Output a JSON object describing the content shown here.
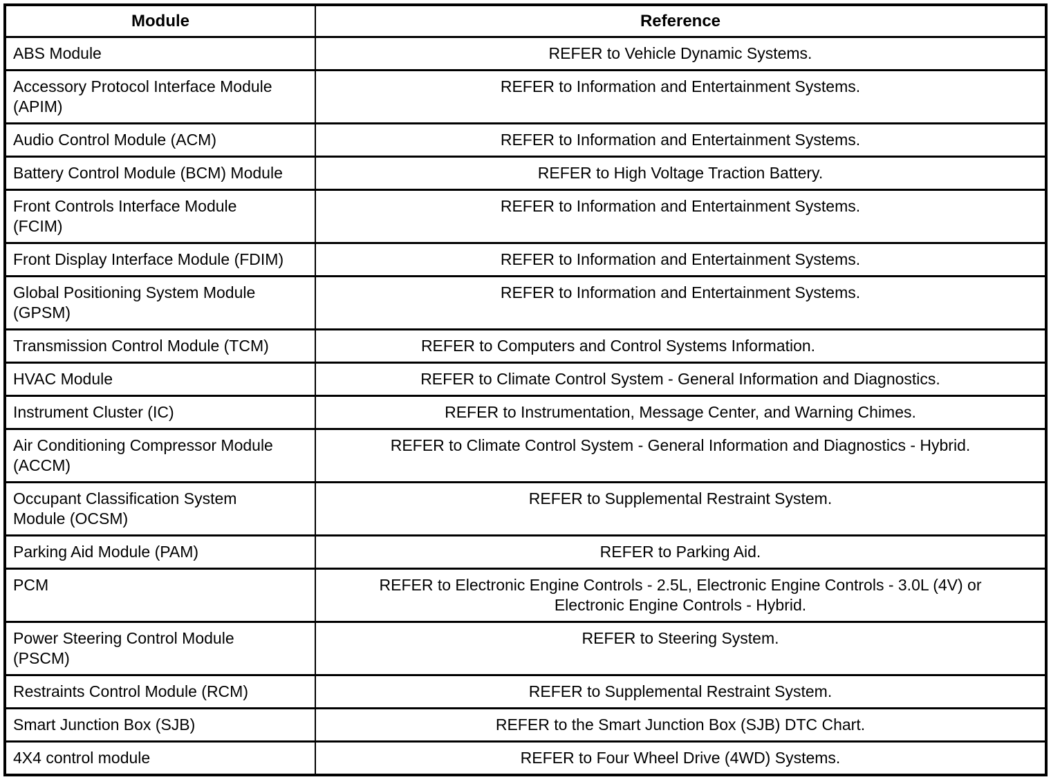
{
  "table": {
    "headers": {
      "module": "Module",
      "reference": "Reference"
    },
    "rows": [
      {
        "module": "ABS Module",
        "reference": "REFER to Vehicle Dynamic Systems."
      },
      {
        "module": "Accessory Protocol Interface Module\n(APIM)",
        "reference": "REFER to Information and Entertainment Systems."
      },
      {
        "module": "Audio Control Module (ACM)",
        "reference": "REFER to Information and Entertainment Systems."
      },
      {
        "module": "Battery Control Module (BCM) Module",
        "reference": "REFER to High Voltage Traction Battery."
      },
      {
        "module": "Front Controls Interface Module\n(FCIM)",
        "reference": "REFER to Information and Entertainment Systems."
      },
      {
        "module": "Front Display Interface Module (FDIM)",
        "reference": "REFER to Information and Entertainment Systems."
      },
      {
        "module": "Global Positioning System Module\n(GPSM)",
        "reference": "REFER to Information and Entertainment Systems."
      },
      {
        "module": "Transmission Control Module (TCM)",
        "reference": "REFER to Computers and Control Systems Information.",
        "ref_shift_left": true
      },
      {
        "module": "HVAC Module",
        "reference": "REFER to Climate Control System - General Information and Diagnostics."
      },
      {
        "module": "Instrument Cluster (IC)",
        "reference": "REFER to Instrumentation, Message Center, and Warning Chimes."
      },
      {
        "module": "Air Conditioning Compressor Module\n(ACCM)",
        "reference": "REFER to Climate Control System - General Information and Diagnostics - Hybrid."
      },
      {
        "module": "Occupant Classification System\nModule (OCSM)",
        "reference": "REFER to Supplemental Restraint System."
      },
      {
        "module": "Parking Aid Module (PAM)",
        "reference": "REFER to Parking Aid."
      },
      {
        "module": "PCM",
        "reference": "REFER to Electronic Engine Controls - 2.5L, Electronic Engine Controls - 3.0L (4V) or\nElectronic Engine Controls - Hybrid."
      },
      {
        "module": "Power Steering Control Module\n(PSCM)",
        "reference": "REFER to Steering System."
      },
      {
        "module": "Restraints Control Module (RCM)",
        "reference": "REFER to Supplemental Restraint System."
      },
      {
        "module": "Smart Junction Box (SJB)",
        "reference": "REFER to the Smart Junction Box (SJB) DTC Chart."
      },
      {
        "module": "4X4 control module",
        "reference": "REFER to Four Wheel Drive (4WD) Systems."
      }
    ],
    "text_color": "#000000",
    "border_color": "#000000",
    "background_color": "#ffffff"
  }
}
